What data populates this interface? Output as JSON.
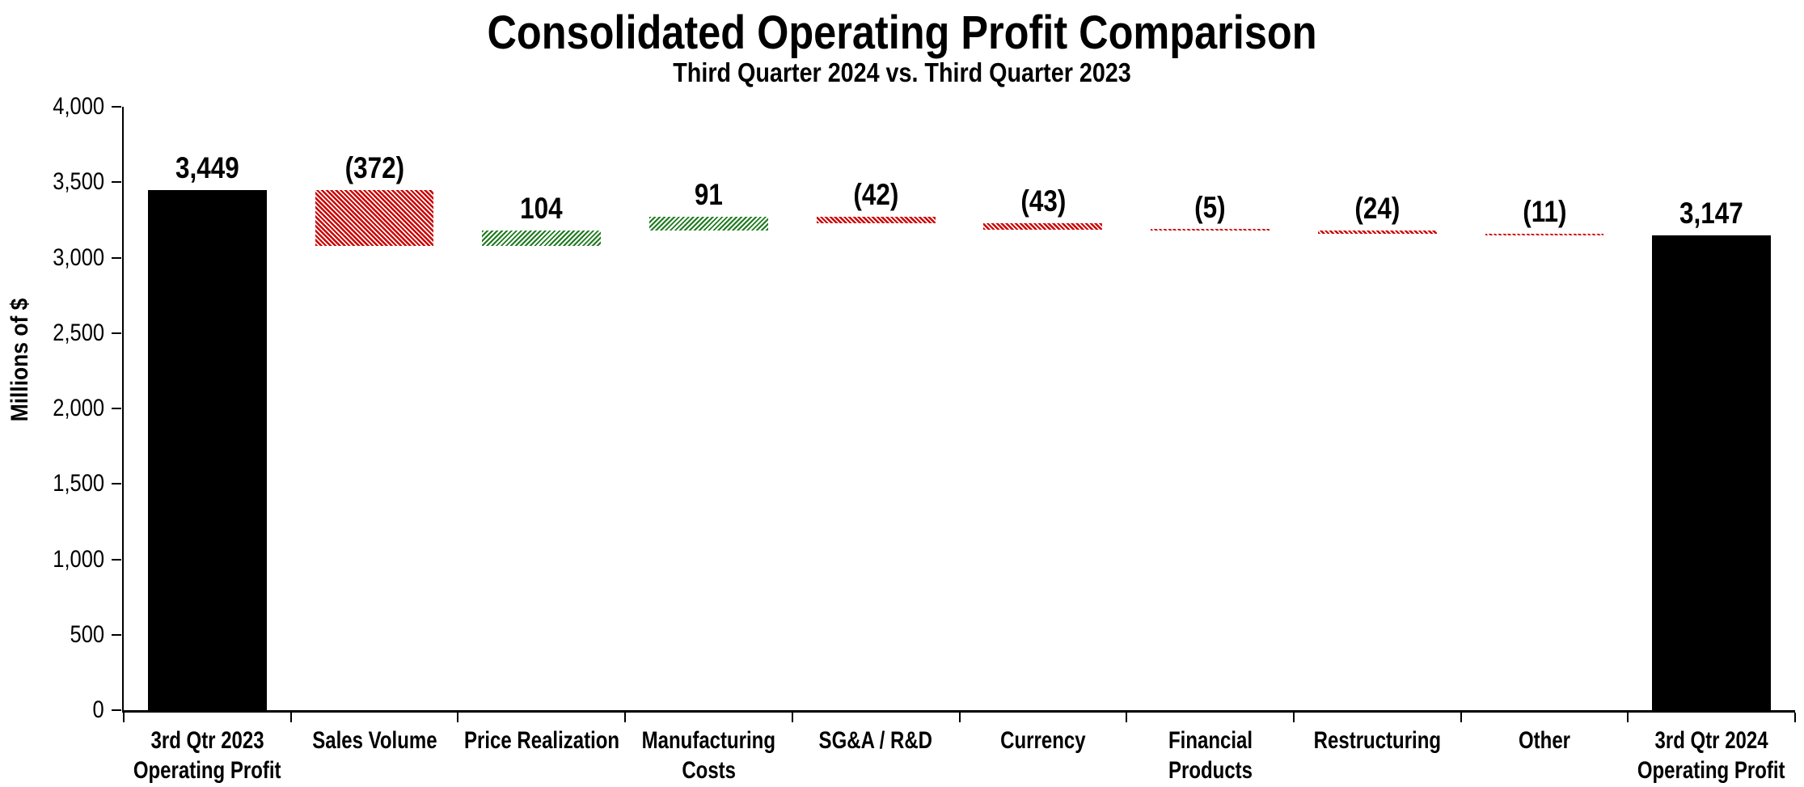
{
  "page": {
    "background": "#ffffff"
  },
  "chart_data": {
    "type": "bar",
    "subtype": "waterfall",
    "title": "Consolidated Operating Profit Comparison",
    "subtitle": "Third Quarter 2024 vs. Third Quarter 2023",
    "ylabel": "Millions of $",
    "xlabel": "",
    "ylim": [
      0,
      4000
    ],
    "grid": false,
    "legend": "none",
    "yticks": [
      {
        "value": 0,
        "label": "0"
      },
      {
        "value": 500,
        "label": "500"
      },
      {
        "value": 1000,
        "label": "1,000"
      },
      {
        "value": 1500,
        "label": "1,500"
      },
      {
        "value": 2000,
        "label": "2,000"
      },
      {
        "value": 2500,
        "label": "2,500"
      },
      {
        "value": 3000,
        "label": "3,000"
      },
      {
        "value": 3500,
        "label": "3,500"
      },
      {
        "value": 4000,
        "label": "4,000"
      }
    ],
    "bars": [
      {
        "category_lines": [
          "3rd Qtr 2023",
          "Operating Profit"
        ],
        "value": 3449,
        "display": "3,449",
        "kind": "total"
      },
      {
        "category_lines": [
          "Sales Volume"
        ],
        "value": -372,
        "display": "(372)",
        "kind": "decrease"
      },
      {
        "category_lines": [
          "Price Realization"
        ],
        "value": 104,
        "display": "104",
        "kind": "increase"
      },
      {
        "category_lines": [
          "Manufacturing",
          "Costs"
        ],
        "value": 91,
        "display": "91",
        "kind": "increase"
      },
      {
        "category_lines": [
          "SG&A / R&D"
        ],
        "value": -42,
        "display": "(42)",
        "kind": "decrease"
      },
      {
        "category_lines": [
          "Currency"
        ],
        "value": -43,
        "display": "(43)",
        "kind": "decrease"
      },
      {
        "category_lines": [
          "Financial",
          "Products"
        ],
        "value": -5,
        "display": "(5)",
        "kind": "decrease"
      },
      {
        "category_lines": [
          "Restructuring"
        ],
        "value": -24,
        "display": "(24)",
        "kind": "decrease"
      },
      {
        "category_lines": [
          "Other"
        ],
        "value": -11,
        "display": "(11)",
        "kind": "decrease"
      },
      {
        "category_lines": [
          "3rd Qtr 2024",
          "Operating Profit"
        ],
        "value": 3147,
        "display": "3,147",
        "kind": "total"
      }
    ],
    "colors": {
      "total": "#000000",
      "increase": "#1E7A1E",
      "decrease": "#CC0000",
      "pattern_background": "#FFFFFF",
      "axis": "#000000",
      "text": "#000000"
    }
  }
}
